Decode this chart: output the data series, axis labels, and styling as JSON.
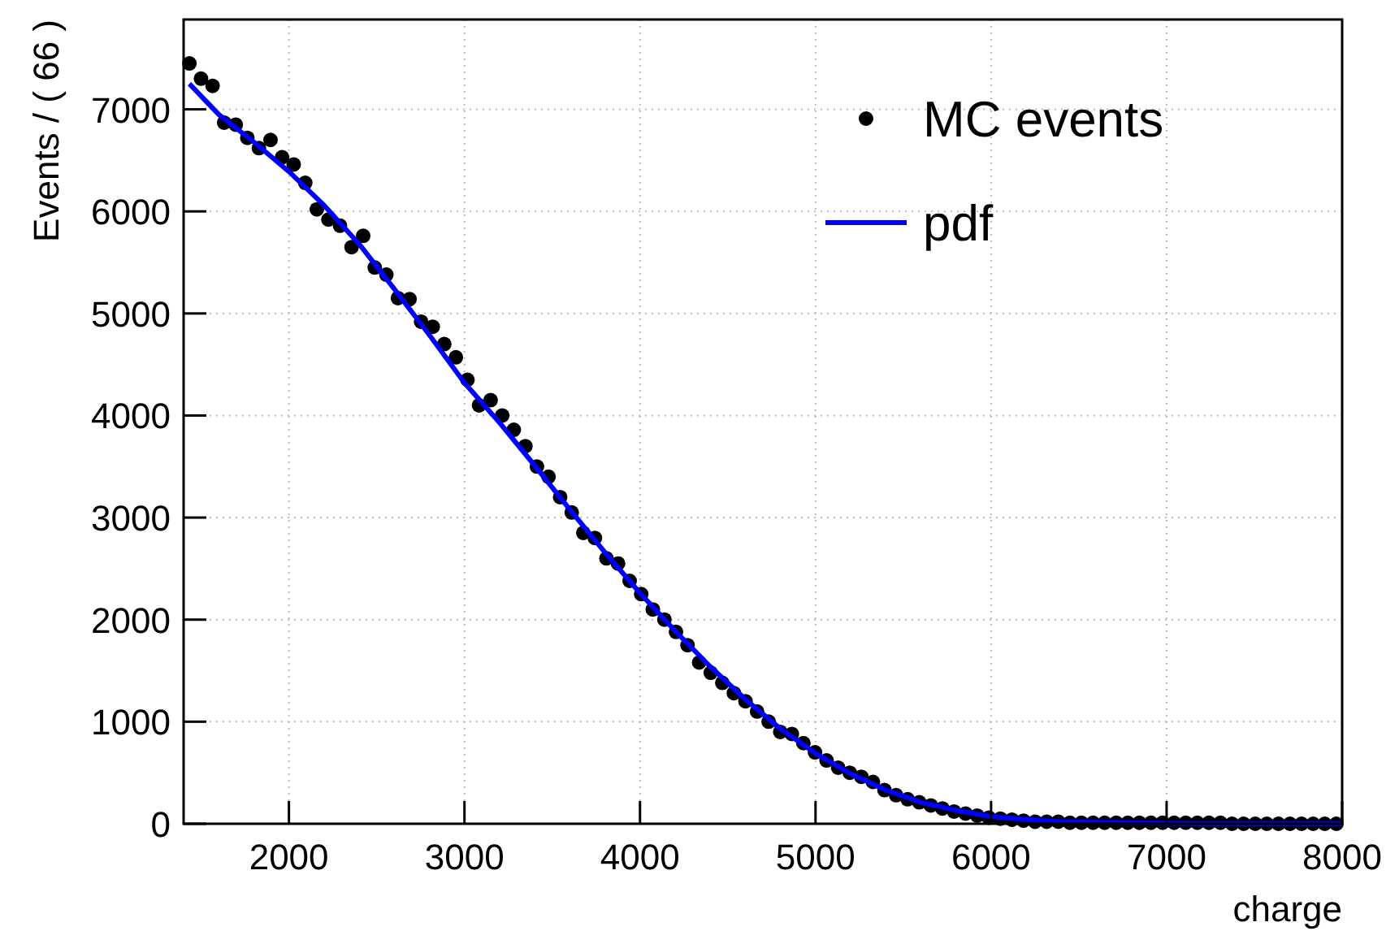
{
  "chart_data": {
    "type": "scatter",
    "xlabel": "charge",
    "ylabel": "Events / ( 66 )",
    "xlim": [
      1400,
      8000
    ],
    "xticks": [
      2000,
      3000,
      4000,
      5000,
      6000,
      7000,
      8000
    ],
    "ylim": [
      0,
      7880
    ],
    "yticks": [
      0,
      1000,
      2000,
      3000,
      4000,
      5000,
      6000,
      7000
    ],
    "grid": true,
    "legend": "top right",
    "series": [
      {
        "name": "MC events",
        "color": "#000000",
        "marker": "circle",
        "x": [
          1433,
          1499,
          1565,
          1631,
          1697,
          1763,
          1829,
          1895,
          1961,
          2027,
          2093,
          2159,
          2225,
          2291,
          2357,
          2423,
          2489,
          2555,
          2621,
          2687,
          2753,
          2819,
          2885,
          2951,
          3017,
          3083,
          3149,
          3215,
          3281,
          3347,
          3413,
          3479,
          3545,
          3611,
          3677,
          3743,
          3809,
          3875,
          3941,
          4007,
          4073,
          4139,
          4205,
          4271,
          4337,
          4403,
          4469,
          4535,
          4601,
          4667,
          4733,
          4799,
          4865,
          4931,
          4997,
          5063,
          5129,
          5195,
          5261,
          5327,
          5393,
          5459,
          5525,
          5591,
          5657,
          5723,
          5789,
          5855,
          5921,
          5987,
          6053,
          6119,
          6185,
          6251,
          6317,
          6383,
          6449,
          6515,
          6581,
          6647,
          6713,
          6779,
          6845,
          6911,
          6977,
          7043,
          7109,
          7175,
          7241,
          7307,
          7373,
          7439,
          7505,
          7571,
          7637,
          7703,
          7769,
          7835,
          7901,
          7967
        ],
        "values": [
          7450,
          7300,
          7230,
          6870,
          6850,
          6720,
          6620,
          6700,
          6530,
          6460,
          6280,
          6020,
          5920,
          5860,
          5650,
          5760,
          5450,
          5380,
          5150,
          5140,
          4920,
          4870,
          4700,
          4570,
          4350,
          4100,
          4150,
          4000,
          3860,
          3700,
          3500,
          3400,
          3200,
          3050,
          2850,
          2800,
          2600,
          2550,
          2380,
          2250,
          2100,
          2000,
          1880,
          1750,
          1580,
          1480,
          1380,
          1280,
          1200,
          1100,
          1000,
          900,
          880,
          790,
          700,
          620,
          550,
          500,
          460,
          410,
          330,
          280,
          240,
          210,
          180,
          150,
          120,
          100,
          80,
          60,
          50,
          40,
          30,
          20,
          20,
          20,
          10,
          10,
          10,
          10,
          10,
          10,
          10,
          10,
          10,
          10,
          10,
          10,
          10,
          10,
          0,
          0,
          0,
          0,
          0,
          0,
          0,
          0,
          0,
          0
        ]
      },
      {
        "name": "pdf",
        "type": "line",
        "color": "#0000ff",
        "line_style": "solid",
        "x": [
          1433,
          1600,
          1800,
          2000,
          2200,
          2400,
          2600,
          2800,
          3000,
          3200,
          3400,
          3600,
          3800,
          4000,
          4200,
          4400,
          4600,
          4800,
          5000,
          5200,
          5400,
          5600,
          5800,
          6000,
          6200,
          6400,
          6800,
          7200,
          7600,
          8000
        ],
        "values": [
          7250,
          6950,
          6680,
          6390,
          6060,
          5680,
          5240,
          4790,
          4320,
          3930,
          3510,
          3080,
          2660,
          2260,
          1890,
          1540,
          1220,
          930,
          690,
          490,
          330,
          210,
          130,
          70,
          40,
          20,
          10,
          0,
          0,
          0
        ]
      }
    ]
  }
}
